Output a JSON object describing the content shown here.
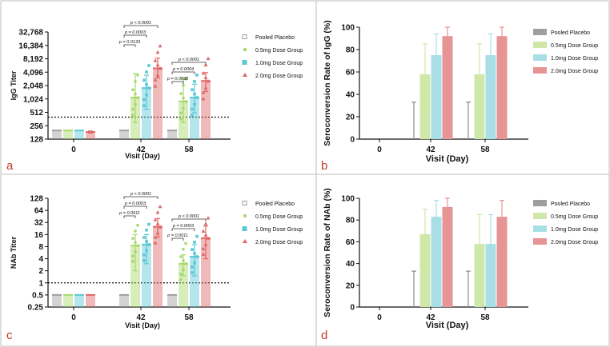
{
  "chart_data": [
    {
      "panel": "a",
      "type": "bar",
      "scale": "log2",
      "ylabel": "IgG Titer",
      "xlabel": "Visit (Day)",
      "categories": [
        "0",
        "42",
        "58"
      ],
      "yticks": [
        "128",
        "256",
        "512",
        "1,024",
        "2,048",
        "4,096",
        "8,192",
        "16,384",
        "32,768"
      ],
      "ylim": [
        128,
        32768
      ],
      "threshold": 400,
      "series": [
        {
          "name": "Pooled Placebo",
          "color": "#9e9e9e",
          "values": [
            200,
            200,
            200
          ],
          "err_low": [
            200,
            200,
            200
          ],
          "err_high": [
            200,
            200,
            200
          ]
        },
        {
          "name": "0.5mg Dose Group",
          "color": "#a6d96a",
          "values": [
            200,
            1100,
            900
          ],
          "err_low": [
            200,
            300,
            300
          ],
          "err_high": [
            200,
            3800,
            3000
          ]
        },
        {
          "name": "1.0mg Dose Group",
          "color": "#5bc8d6",
          "values": [
            200,
            1800,
            1100
          ],
          "err_low": [
            200,
            600,
            500
          ],
          "err_high": [
            200,
            3500,
            2200
          ]
        },
        {
          "name": "2.0mg Dose Group",
          "color": "#e06666",
          "values": [
            185,
            5000,
            2600
          ],
          "err_low": [
            175,
            3000,
            1500
          ],
          "err_high": [
            195,
            8500,
            4000
          ]
        }
      ],
      "pvalues": [
        "p = 0.0133",
        "p = 0.0003",
        "p < 0.0001",
        "p = 0.0038",
        "p = 0.0004",
        "p < 0.0001"
      ]
    },
    {
      "panel": "b",
      "type": "bar",
      "ylabel": "Seroconversion Rate of IgG (%)",
      "xlabel": "Visit (Day)",
      "categories": [
        "0",
        "42",
        "58"
      ],
      "yticks": [
        "0",
        "20",
        "40",
        "60",
        "80",
        "100"
      ],
      "ylim": [
        0,
        100
      ],
      "series": [
        {
          "name": "Pooled Placebo",
          "color": "#9e9e9e",
          "values": [
            0,
            0,
            0
          ],
          "err_high": [
            0,
            33,
            33
          ]
        },
        {
          "name": "0.5mg Dose Group",
          "color": "#cfe8a9",
          "values": [
            0,
            58,
            58
          ],
          "err_low": [
            0,
            28,
            28
          ],
          "err_high": [
            0,
            85,
            85
          ]
        },
        {
          "name": "1.0mg Dose Group",
          "color": "#a8dfe6",
          "values": [
            0,
            75,
            75
          ],
          "err_low": [
            0,
            43,
            43
          ],
          "err_high": [
            0,
            94,
            94
          ]
        },
        {
          "name": "2.0mg Dose Group",
          "color": "#e69494",
          "values": [
            0,
            92,
            92
          ],
          "err_low": [
            0,
            62,
            62
          ],
          "err_high": [
            0,
            100,
            100
          ]
        }
      ]
    },
    {
      "panel": "c",
      "type": "bar",
      "scale": "log2",
      "ylabel": "NAb Titer",
      "xlabel": "Visit (Day)",
      "categories": [
        "0",
        "42",
        "58"
      ],
      "yticks": [
        "0.25",
        "0.5",
        "1",
        "2",
        "4",
        "8",
        "16",
        "32",
        "64",
        "128"
      ],
      "ylim": [
        0.25,
        128
      ],
      "threshold": 1,
      "series": [
        {
          "name": "Pooled Placebo",
          "color": "#9e9e9e",
          "values": [
            0.5,
            0.5,
            0.5
          ],
          "err_low": [
            0.5,
            0.5,
            0.5
          ],
          "err_high": [
            0.5,
            0.5,
            0.5
          ]
        },
        {
          "name": "0.5mg Dose Group",
          "color": "#a6d96a",
          "values": [
            0.5,
            8.5,
            3
          ],
          "err_low": [
            0.5,
            2,
            1.5
          ],
          "err_high": [
            0.5,
            16,
            5
          ]
        },
        {
          "name": "1.0mg Dose Group",
          "color": "#5bc8d6",
          "values": [
            0.5,
            9,
            4.5
          ],
          "err_low": [
            0.5,
            3,
            1.5
          ],
          "err_high": [
            0.5,
            16,
            9
          ]
        },
        {
          "name": "2.0mg Dose Group",
          "color": "#e06666",
          "values": [
            0.5,
            25,
            13
          ],
          "err_low": [
            0.5,
            14,
            4
          ],
          "err_high": [
            0.5,
            40,
            26
          ]
        }
      ],
      "pvalues": [
        "p = 0.0011",
        "p = 0.0003",
        "p < 0.0001",
        "p = 0.0011",
        "p = 0.0003",
        "p < 0.0001"
      ]
    },
    {
      "panel": "d",
      "type": "bar",
      "ylabel": "Seroconversion Rate of NAb (%)",
      "xlabel": "Visit (Day)",
      "categories": [
        "0",
        "42",
        "58"
      ],
      "yticks": [
        "0",
        "20",
        "40",
        "60",
        "80",
        "100"
      ],
      "ylim": [
        0,
        100
      ],
      "series": [
        {
          "name": "Pooled Placebo",
          "color": "#9e9e9e",
          "values": [
            0,
            0,
            0
          ],
          "err_high": [
            0,
            33,
            33
          ]
        },
        {
          "name": "0.5mg Dose Group",
          "color": "#cfe8a9",
          "values": [
            0,
            67,
            58
          ],
          "err_low": [
            0,
            35,
            28
          ],
          "err_high": [
            0,
            90,
            85
          ]
        },
        {
          "name": "1.0mg Dose Group",
          "color": "#a8dfe6",
          "values": [
            0,
            83,
            58
          ],
          "err_low": [
            0,
            52,
            28
          ],
          "err_high": [
            0,
            98,
            85
          ]
        },
        {
          "name": "2.0mg Dose Group",
          "color": "#e69494",
          "values": [
            0,
            92,
            83
          ],
          "err_low": [
            0,
            62,
            52
          ],
          "err_high": [
            0,
            100,
            98
          ]
        }
      ]
    }
  ]
}
